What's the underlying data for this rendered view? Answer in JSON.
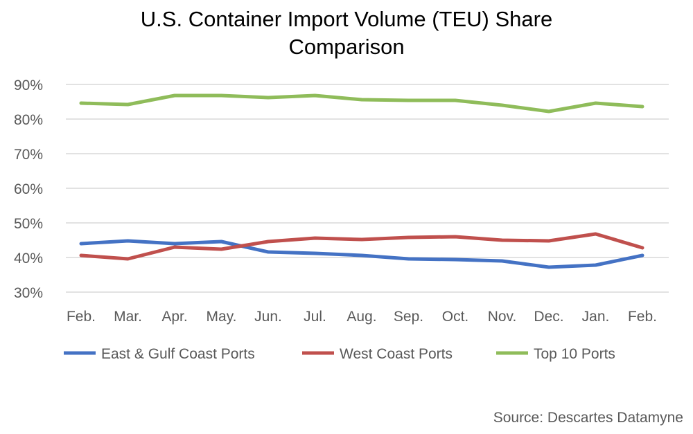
{
  "chart_data": {
    "type": "line",
    "title_line1": "U.S. Container Import Volume (TEU) Share",
    "title_line2": "Comparison",
    "categories": [
      "Feb.",
      "Mar.",
      "Apr.",
      "May.",
      "Jun.",
      "Jul.",
      "Aug.",
      "Sep.",
      "Oct.",
      "Nov.",
      "Dec.",
      "Jan.",
      "Feb."
    ],
    "yticks": [
      "30%",
      "40%",
      "50%",
      "60%",
      "70%",
      "80%",
      "90%"
    ],
    "ylim": [
      30,
      90
    ],
    "grid": true,
    "legend_position": "bottom",
    "series": [
      {
        "name": "East & Gulf Coast Ports",
        "color": "#4472C4",
        "values": [
          44.0,
          44.8,
          44.0,
          44.6,
          41.6,
          41.2,
          40.6,
          39.6,
          39.4,
          39.0,
          37.2,
          37.8,
          40.6
        ]
      },
      {
        "name": "West Coast Ports",
        "color": "#C0504D",
        "values": [
          40.6,
          39.6,
          43.0,
          42.4,
          44.6,
          45.6,
          45.2,
          45.8,
          46.0,
          45.0,
          44.8,
          46.8,
          42.8
        ]
      },
      {
        "name": "Top 10 Ports",
        "color": "#8FBC5A",
        "values": [
          84.6,
          84.2,
          86.8,
          86.8,
          86.2,
          86.8,
          85.6,
          85.4,
          85.4,
          84.0,
          82.2,
          84.6,
          83.6
        ]
      }
    ]
  },
  "source": "Source: Descartes Datamyne"
}
